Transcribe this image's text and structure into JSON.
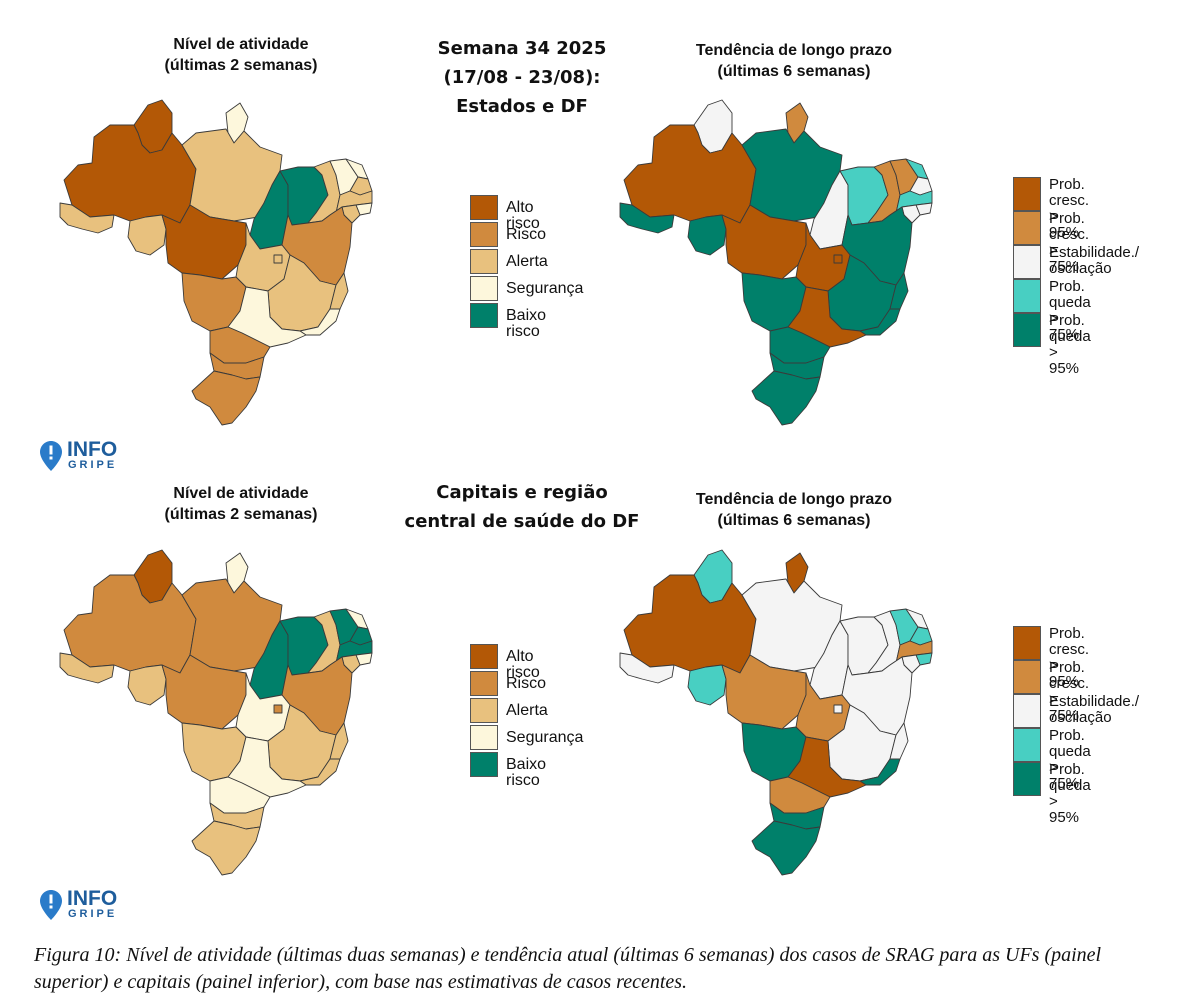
{
  "panels": {
    "top": {
      "activity_title": [
        "Nível de atividade",
        "(últimas 2 semanas)"
      ],
      "center_title": [
        "Semana 34 2025",
        "(17/08 - 23/08):",
        "Estados e DF"
      ],
      "trend_title": [
        "Tendência de longo prazo",
        "(últimas 6 semanas)"
      ]
    },
    "bottom": {
      "activity_title": [
        "Nível de atividade",
        "(últimas 2 semanas)"
      ],
      "center_title": [
        "Capitais e região",
        "central de saúde do DF"
      ],
      "trend_title": [
        "Tendência de longo prazo",
        "(últimas 6 semanas)"
      ]
    }
  },
  "activity_legend": [
    {
      "label": "Alto risco",
      "color": "#b35806"
    },
    {
      "label": "Risco",
      "color": "#d08a3e"
    },
    {
      "label": "Alerta",
      "color": "#e8c17e"
    },
    {
      "label": "Segurança",
      "color": "#fdf7dc"
    },
    {
      "label": "Baixo risco",
      "color": "#00806a"
    }
  ],
  "trend_legend": [
    {
      "label": "Prob. cresc.\n> 95%",
      "color": "#b35806"
    },
    {
      "label": "Prob. cresc.\n> 75%",
      "color": "#d08a3e"
    },
    {
      "label": "Estabilidade./\noscilação",
      "color": "#f4f4f4"
    },
    {
      "label": "Prob. queda\n> 75%",
      "color": "#48cfc2"
    },
    {
      "label": "Prob. queda\n> 95%",
      "color": "#00806a"
    }
  ],
  "logo": {
    "line1": "INFO",
    "line2": "GRIPE",
    "icon": "map-pin-icon"
  },
  "caption": "Figura 10: Nível de atividade (últimas duas semanas) e tendência atual (últimas 6 semanas) dos casos de SRAG para as UFs (painel superior) e capitais (painel inferior), com base nas estimativas de casos recentes.",
  "maps": {
    "top_activity": {
      "AM": "alto",
      "RR": "alto",
      "AC": "alerta",
      "PA": "alerta",
      "AP": "seguranca",
      "TO": "baixo",
      "MA": "baixo",
      "PI": "alerta",
      "CE": "seguranca",
      "RN": "seguranca",
      "PB": "alerta",
      "PE": "alerta",
      "AL": "seguranca",
      "SE": "alerta",
      "BA": "risco",
      "RO": "alerta",
      "MT": "alto",
      "GO": "alerta",
      "DF": "alerta",
      "MG": "alerta",
      "ES": "alerta",
      "RJ": "seguranca",
      "SP": "seguranca",
      "MS": "risco",
      "PR": "risco",
      "SC": "risco",
      "RS": "risco"
    },
    "top_trend": {
      "AM": "cresc95",
      "RR": "estab",
      "AC": "queda95",
      "PA": "queda95",
      "AP": "cresc75",
      "TO": "estab",
      "MA": "queda75",
      "PI": "cresc75",
      "CE": "cresc75",
      "RN": "queda75",
      "PB": "estab",
      "PE": "queda75",
      "AL": "estab",
      "SE": "estab",
      "BA": "queda95",
      "RO": "queda95",
      "MT": "cresc95",
      "GO": "cresc95",
      "DF": "cresc95",
      "MG": "queda95",
      "ES": "queda95",
      "RJ": "queda95",
      "SP": "cresc95",
      "MS": "queda95",
      "PR": "queda95",
      "SC": "queda95",
      "RS": "queda95"
    },
    "bottom_activity": {
      "AM": "risco",
      "RR": "alto",
      "AC": "alerta",
      "PA": "risco",
      "AP": "seguranca",
      "TO": "baixo",
      "MA": "baixo",
      "PI": "alerta",
      "CE": "baixo",
      "RN": "seguranca",
      "PB": "baixo",
      "PE": "baixo",
      "AL": "seguranca",
      "SE": "alerta",
      "BA": "risco",
      "RO": "alerta",
      "MT": "risco",
      "GO": "seguranca",
      "DF": "risco",
      "MG": "alerta",
      "ES": "alerta",
      "RJ": "alerta",
      "SP": "seguranca",
      "MS": "alerta",
      "PR": "seguranca",
      "SC": "alerta",
      "RS": "alerta"
    },
    "bottom_trend": {
      "AM": "cresc95",
      "RR": "queda75",
      "AC": "estab",
      "PA": "estab",
      "AP": "cresc95",
      "TO": "estab",
      "MA": "estab",
      "PI": "estab",
      "CE": "queda75",
      "RN": "estab",
      "PB": "queda75",
      "PE": "cresc75",
      "AL": "queda75",
      "SE": "estab",
      "BA": "estab",
      "RO": "queda75",
      "MT": "cresc75",
      "GO": "cresc75",
      "DF": "estab",
      "MG": "estab",
      "ES": "estab",
      "RJ": "queda95",
      "SP": "cresc95",
      "MS": "queda95",
      "PR": "cresc75",
      "SC": "queda95",
      "RS": "queda95"
    }
  }
}
